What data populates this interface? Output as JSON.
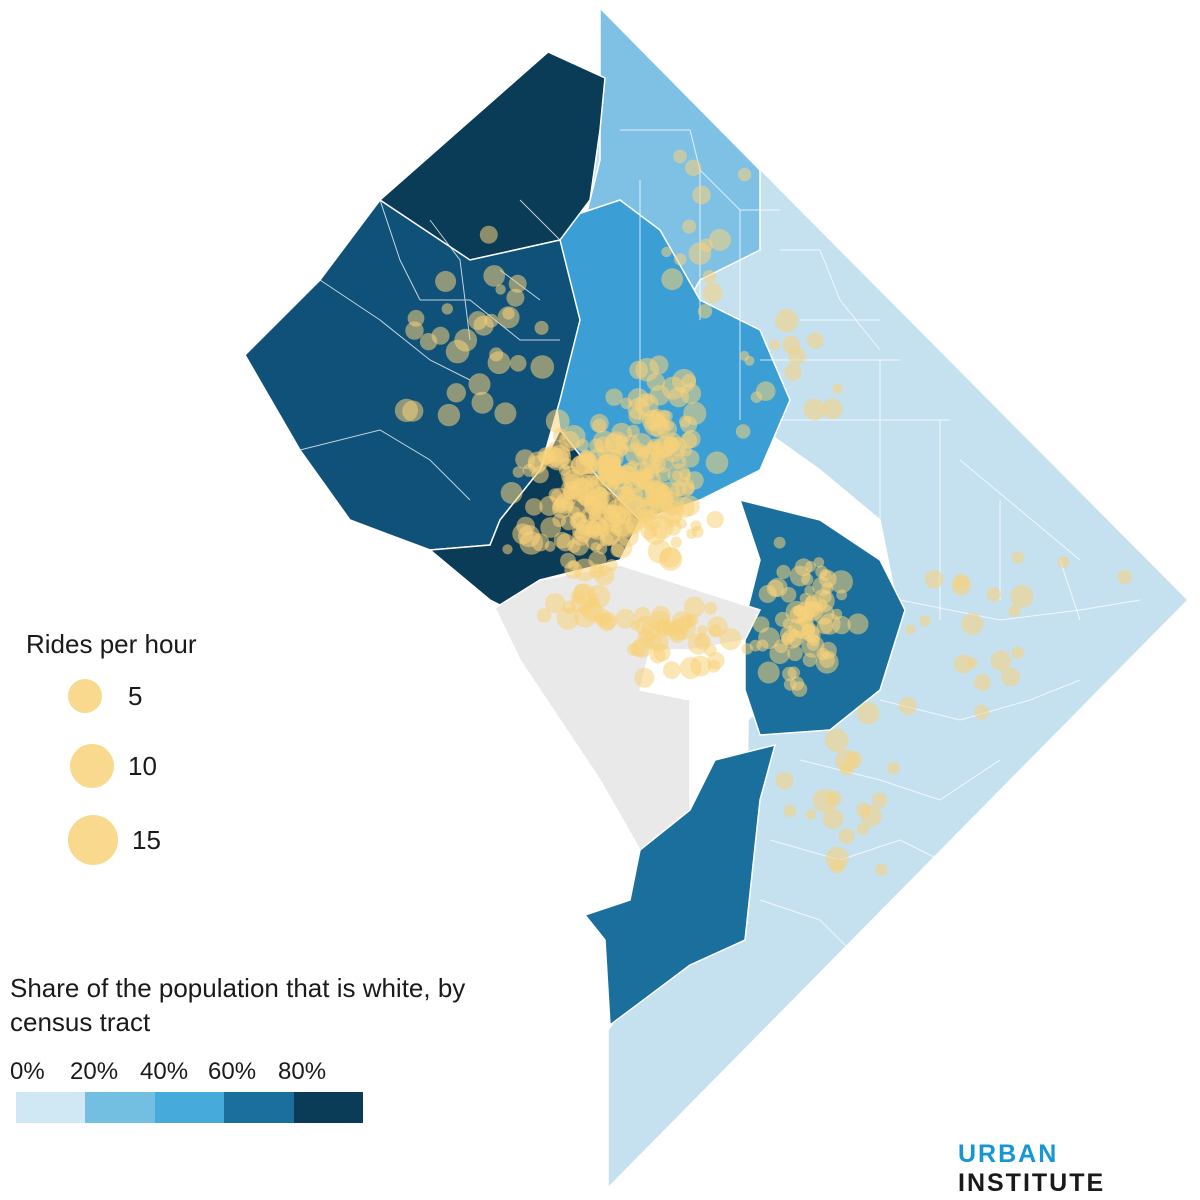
{
  "size_legend": {
    "title": "Rides per hour",
    "items": [
      {
        "label": "5",
        "value": 5
      },
      {
        "label": "10",
        "value": 10
      },
      {
        "label": "15",
        "value": 15
      }
    ]
  },
  "color_legend": {
    "title": "Share of the population that is white, by census tract",
    "ticks": [
      "0%",
      "20%",
      "40%",
      "60%",
      "80%"
    ],
    "colors": [
      "#cfe8f3",
      "#73bfe2",
      "#46abdb",
      "#1a6f9c",
      "#0a3b57"
    ]
  },
  "map": {
    "no_data_color": "#e9e9e9",
    "bubble_color": "#f7d27a"
  },
  "brand": {
    "part1": "URBAN",
    "part2": "INSTITUTE"
  }
}
